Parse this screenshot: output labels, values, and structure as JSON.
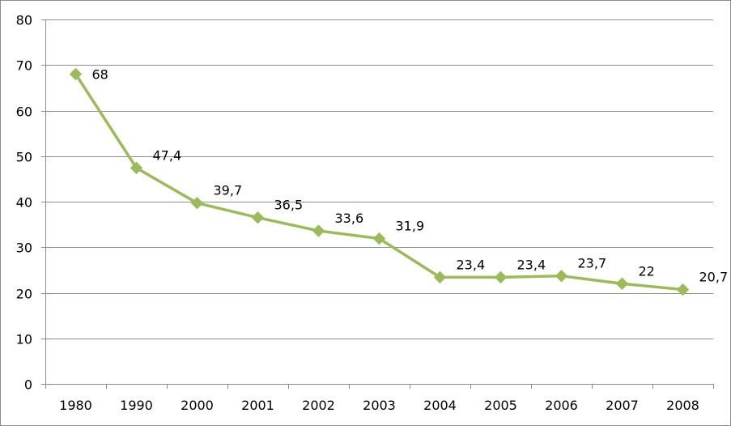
{
  "colors": {
    "series": "#9BBB59",
    "grid": "#8c8c8c",
    "axis": "#8c8c8c",
    "text": "#000000"
  },
  "chart_data": {
    "type": "line",
    "title": "",
    "xlabel": "",
    "ylabel": "",
    "categories": [
      "1980",
      "1990",
      "2000",
      "2001",
      "2002",
      "2003",
      "2004",
      "2005",
      "2006",
      "2007",
      "2008"
    ],
    "series": [
      {
        "values": [
          68,
          47.4,
          39.7,
          36.5,
          33.6,
          31.9,
          23.4,
          23.4,
          23.7,
          22,
          20.7
        ],
        "data_labels": [
          "68",
          "47,4",
          "39,7",
          "36,5",
          "33,6",
          "31,9",
          "23,4",
          "23,4",
          "23,7",
          "22",
          "20,7"
        ],
        "marker": "diamond",
        "color": "#9BBB59"
      }
    ],
    "ylim": [
      0,
      80
    ],
    "yticks": [
      0,
      10,
      20,
      30,
      40,
      50,
      60,
      70,
      80
    ],
    "ytick_labels": [
      "0",
      "10",
      "20",
      "30",
      "40",
      "50",
      "60",
      "70",
      "80"
    ],
    "grid": "horizontal",
    "legend": "none"
  }
}
